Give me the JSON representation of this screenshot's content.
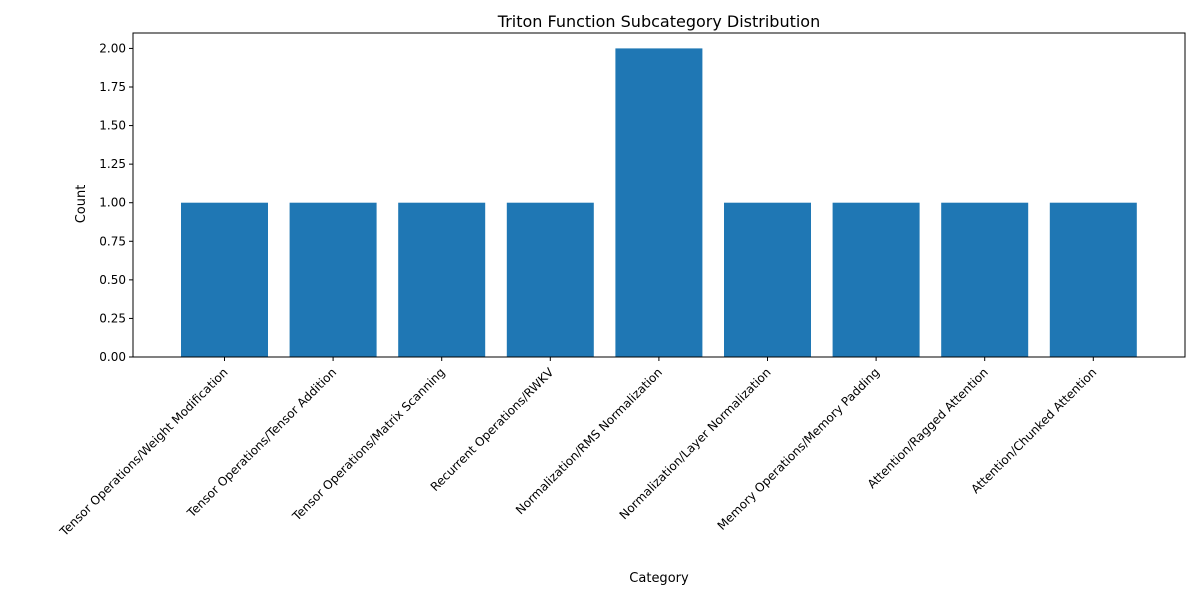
{
  "chart_data": {
    "type": "bar",
    "title": "Triton Function Subcategory Distribution",
    "xlabel": "Category",
    "ylabel": "Count",
    "ylim": [
      0,
      2.1
    ],
    "yticks": [
      "0.00",
      "0.25",
      "0.50",
      "0.75",
      "1.00",
      "1.25",
      "1.50",
      "1.75",
      "2.00"
    ],
    "ytick_values": [
      0,
      0.25,
      0.5,
      0.75,
      1.0,
      1.25,
      1.5,
      1.75,
      2.0
    ],
    "categories": [
      "Tensor Operations/Weight Modification",
      "Tensor Operations/Tensor Addition",
      "Tensor Operations/Matrix Scanning",
      "Recurrent Operations/RWKV",
      "Normalization/RMS Normalization",
      "Normalization/Layer Normalization",
      "Memory Operations/Memory Padding",
      "Attention/Ragged Attention",
      "Attention/Chunked Attention"
    ],
    "values": [
      1,
      1,
      1,
      1,
      2,
      1,
      1,
      1,
      1
    ],
    "bar_color": "#1f77b4",
    "grid": false,
    "legend": "none"
  }
}
